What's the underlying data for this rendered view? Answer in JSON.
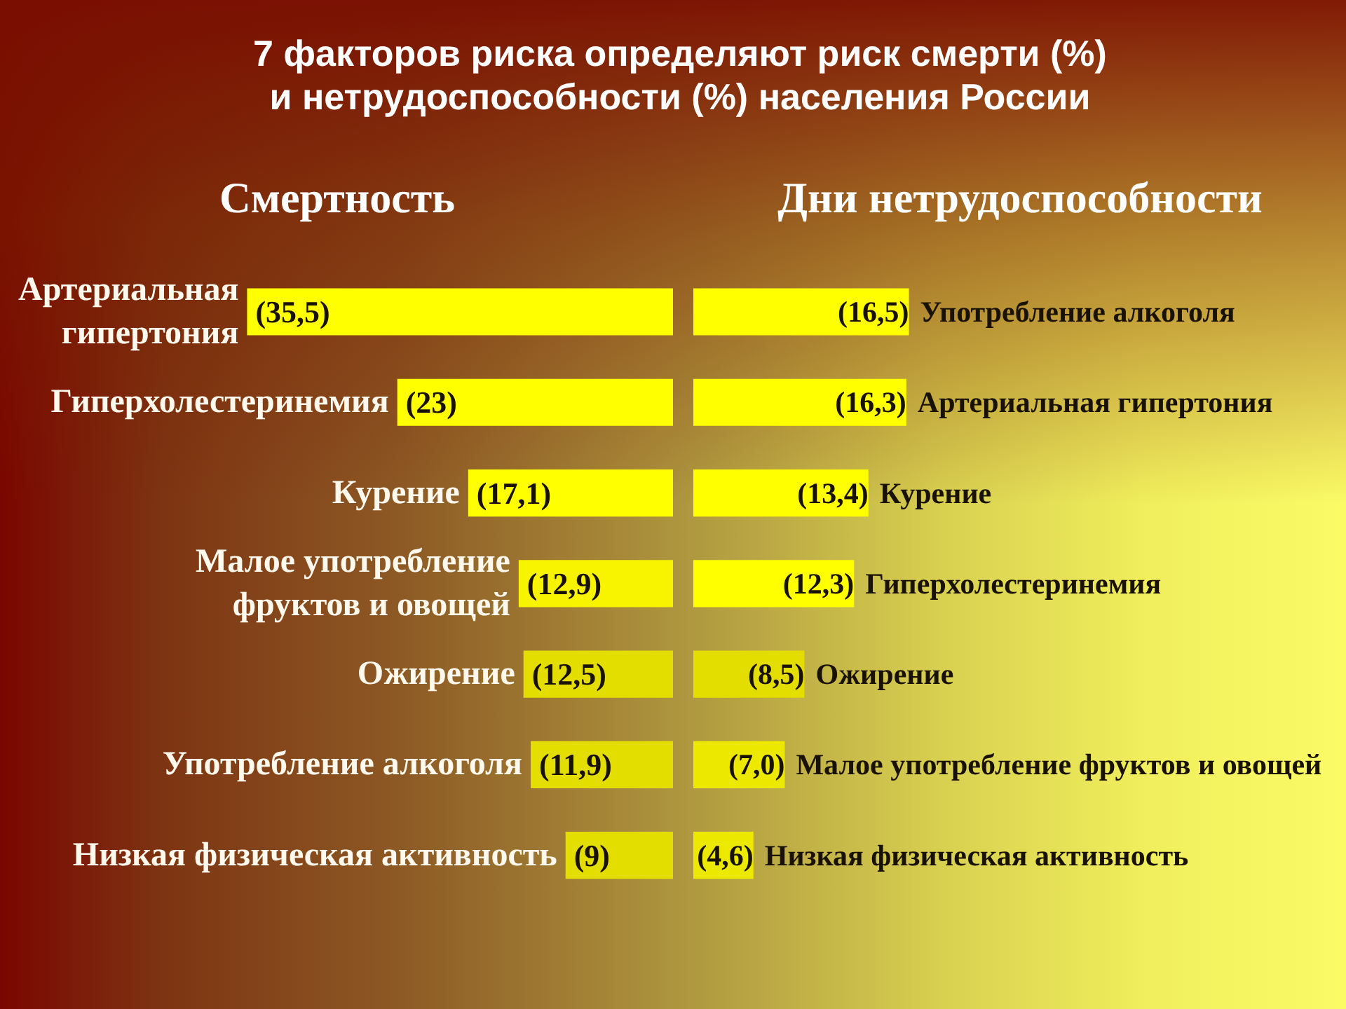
{
  "chart_data": [
    {
      "type": "bar",
      "orientation": "horizontal",
      "title": "7 факторов риска определяют риск смерти (%)\nи нетрудоспособности (%) населения России",
      "subtitle": "Смертность",
      "categories": [
        "Артериальная\nгипертония",
        "Гиперхолестеринемия",
        "Курение",
        "Малое употребление\nфруктов и овощей",
        "Ожирение",
        "Употребление алкоголя",
        "Низкая физическая активность"
      ],
      "values": [
        35.5,
        23,
        17.1,
        12.9,
        12.5,
        11.9,
        9
      ],
      "value_labels": [
        "(35,5)",
        "(23)",
        "(17,1)",
        "(12,9)",
        "(12,5)",
        "(11,9)",
        "(9)"
      ],
      "colors": [
        "#ffff00",
        "#ffff00",
        "#ffff00",
        "#f8f400",
        "#e4de00",
        "#e4de00",
        "#e4de00"
      ],
      "xlim": [
        56,
        0
      ],
      "tick_labels": false,
      "grid": false
    },
    {
      "type": "bar",
      "orientation": "horizontal",
      "title": "Дни нетрудоспособности",
      "categories": [
        "Употребление алкоголя",
        "Артериальная гипертония",
        "Курение",
        "Гиперхолестеринемия",
        "Ожирение",
        "Малое употребление фруктов и овощей",
        "Низкая физическая активность"
      ],
      "values": [
        16.5,
        16.3,
        13.4,
        12.3,
        8.5,
        7.0,
        4.6
      ],
      "value_labels": [
        "(16,5)",
        "(16,3)",
        "(13,4)",
        "(12,3)",
        "(8,5)",
        "(7,0)",
        "(4,6)"
      ],
      "colors": [
        "#ffff00",
        "#ffff00",
        "#ffff00",
        "#ffff00",
        "#e4de00",
        "#ece800",
        "#ece800"
      ],
      "xlim": [
        0,
        50
      ],
      "tick_labels": false,
      "grid": false
    }
  ]
}
